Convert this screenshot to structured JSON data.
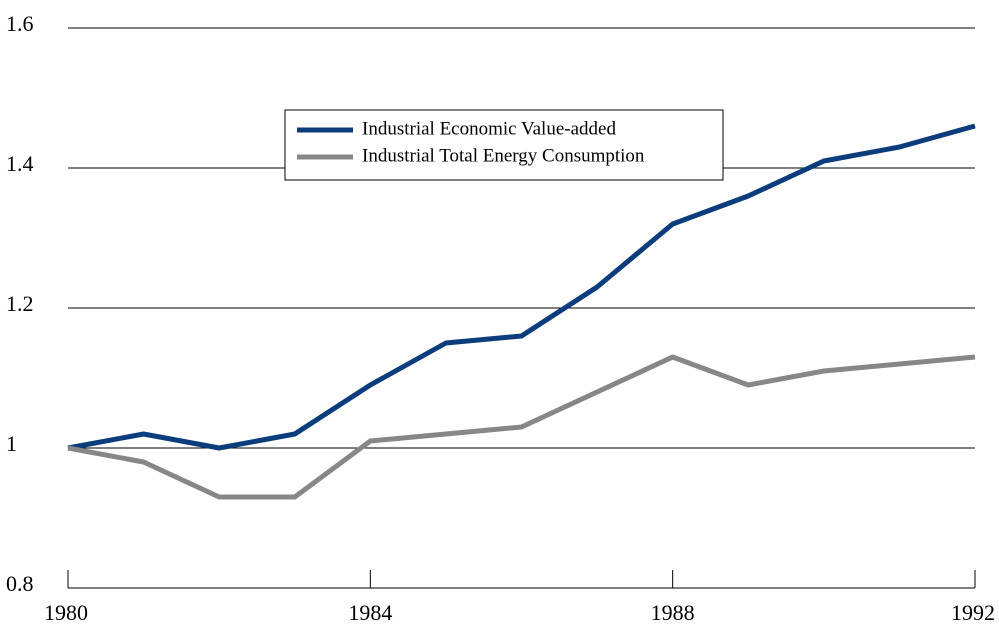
{
  "chart_data": {
    "type": "line",
    "x": [
      1980,
      1981,
      1982,
      1983,
      1984,
      1985,
      1986,
      1987,
      1988,
      1989,
      1990,
      1991,
      1992
    ],
    "series": [
      {
        "name": "Industrial Economic Value-added",
        "color": "#0b3c7c",
        "values": [
          1.0,
          1.02,
          1.0,
          1.02,
          1.09,
          1.15,
          1.16,
          1.23,
          1.32,
          1.36,
          1.41,
          1.43,
          1.46
        ]
      },
      {
        "name": "Industrial Total Energy Consumption",
        "color": "#878787",
        "values": [
          1.0,
          0.98,
          0.93,
          0.93,
          1.01,
          1.02,
          1.03,
          1.08,
          1.13,
          1.09,
          1.11,
          1.12,
          1.13
        ]
      }
    ],
    "xlim": [
      1980,
      1992
    ],
    "xticks": [
      1980,
      1984,
      1988,
      1992
    ],
    "ylim": [
      0.8,
      1.6
    ],
    "yticks": [
      0.8,
      1,
      1.2,
      1.4,
      1.6
    ],
    "grid": true,
    "legend": "top-center"
  }
}
